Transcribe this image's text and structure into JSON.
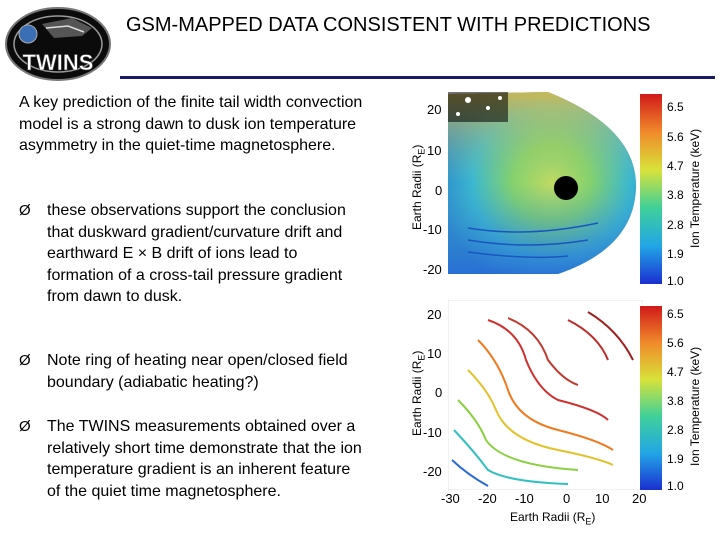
{
  "logo": {
    "text": "TWINS"
  },
  "title": "GSM-MAPPED DATA CONSISTENT WITH PREDICTIONS",
  "intro": "A key prediction of the finite tail width convection model is a strong dawn to dusk ion temperature asymmetry in the quiet-time magnetosphere.",
  "bullet_marker": "Ø",
  "bullets": [
    "these observations support the conclusion that duskward gradient/curvature drift and earthward E × B drift of ions lead to formation of a cross-tail pressure gradient from dawn to dusk.",
    "Note ring of heating near open/closed field boundary (adiabatic heating?)",
    "The TWINS measurements obtained over a relatively short time demonstrate that the ion temperature gradient is an inherent feature of the quiet time magnetosphere."
  ],
  "figure": {
    "y_label": "Earth Radii (R",
    "x_label": "Earth Radii (R",
    "unit_sub": "E",
    "unit_close": ")",
    "cbar_label": "Ion Temperature (keV)",
    "y_ticks": [
      "20",
      "10",
      "0",
      "-10",
      "-20"
    ],
    "x_ticks": [
      "-30",
      "-20",
      "-10",
      "0",
      "10",
      "20"
    ],
    "cbar_ticks": [
      "6.5",
      "5.6",
      "4.7",
      "3.8",
      "2.8",
      "1.9",
      "1.0"
    ]
  }
}
